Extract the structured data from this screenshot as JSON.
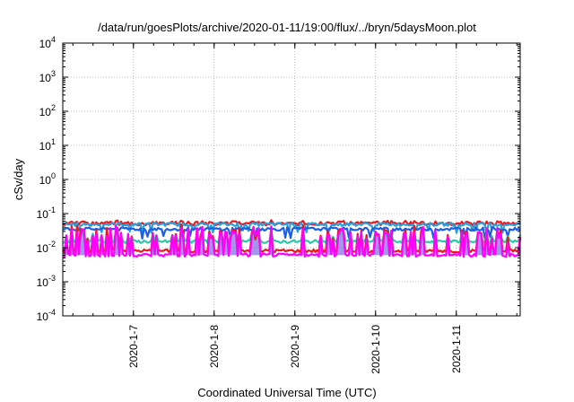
{
  "chart_data": {
    "type": "line",
    "title": "/data/run/goesPlots/archive/2020-01-11/19:00/flux/../bryn/5daysMoon.plot",
    "xlabel": "Coordinated Universal Time (UTC)",
    "ylabel": "cSv/day",
    "y_scale": "log",
    "ylim_exponents": [
      -4,
      4
    ],
    "y_tick_base": "10",
    "y_tick_exponents": [
      "-4",
      "-3",
      "-2",
      "-1",
      "0",
      "1",
      "2",
      "3",
      "4"
    ],
    "x_tick_labels": [
      "2020-1-7",
      "2020-1-8",
      "2020-1-9",
      "2020-1-10",
      "2020-1-11"
    ],
    "x_range": [
      "2020-01-06T03:00",
      "2020-01-11T19:00"
    ],
    "grid": true,
    "legend": "none",
    "series": [
      {
        "color": "#e8191e",
        "baseline": 0.05,
        "spike_to": 0.065
      },
      {
        "color": "#2c9fd8",
        "baseline": 0.048,
        "dip_to": 0.03
      },
      {
        "color": "#1b5fe8",
        "baseline": 0.035,
        "dip_to": 0.02
      },
      {
        "color": "#2cc9a8",
        "baseline": 0.015,
        "spike_to": 0.035
      },
      {
        "color": "#e8191e",
        "baseline": 0.008,
        "spike_to": 0.05
      },
      {
        "color": "#ff00ff",
        "baseline": 0.006,
        "spike_to": 0.05
      }
    ],
    "spike_fill_color": "#5a3fd8"
  }
}
